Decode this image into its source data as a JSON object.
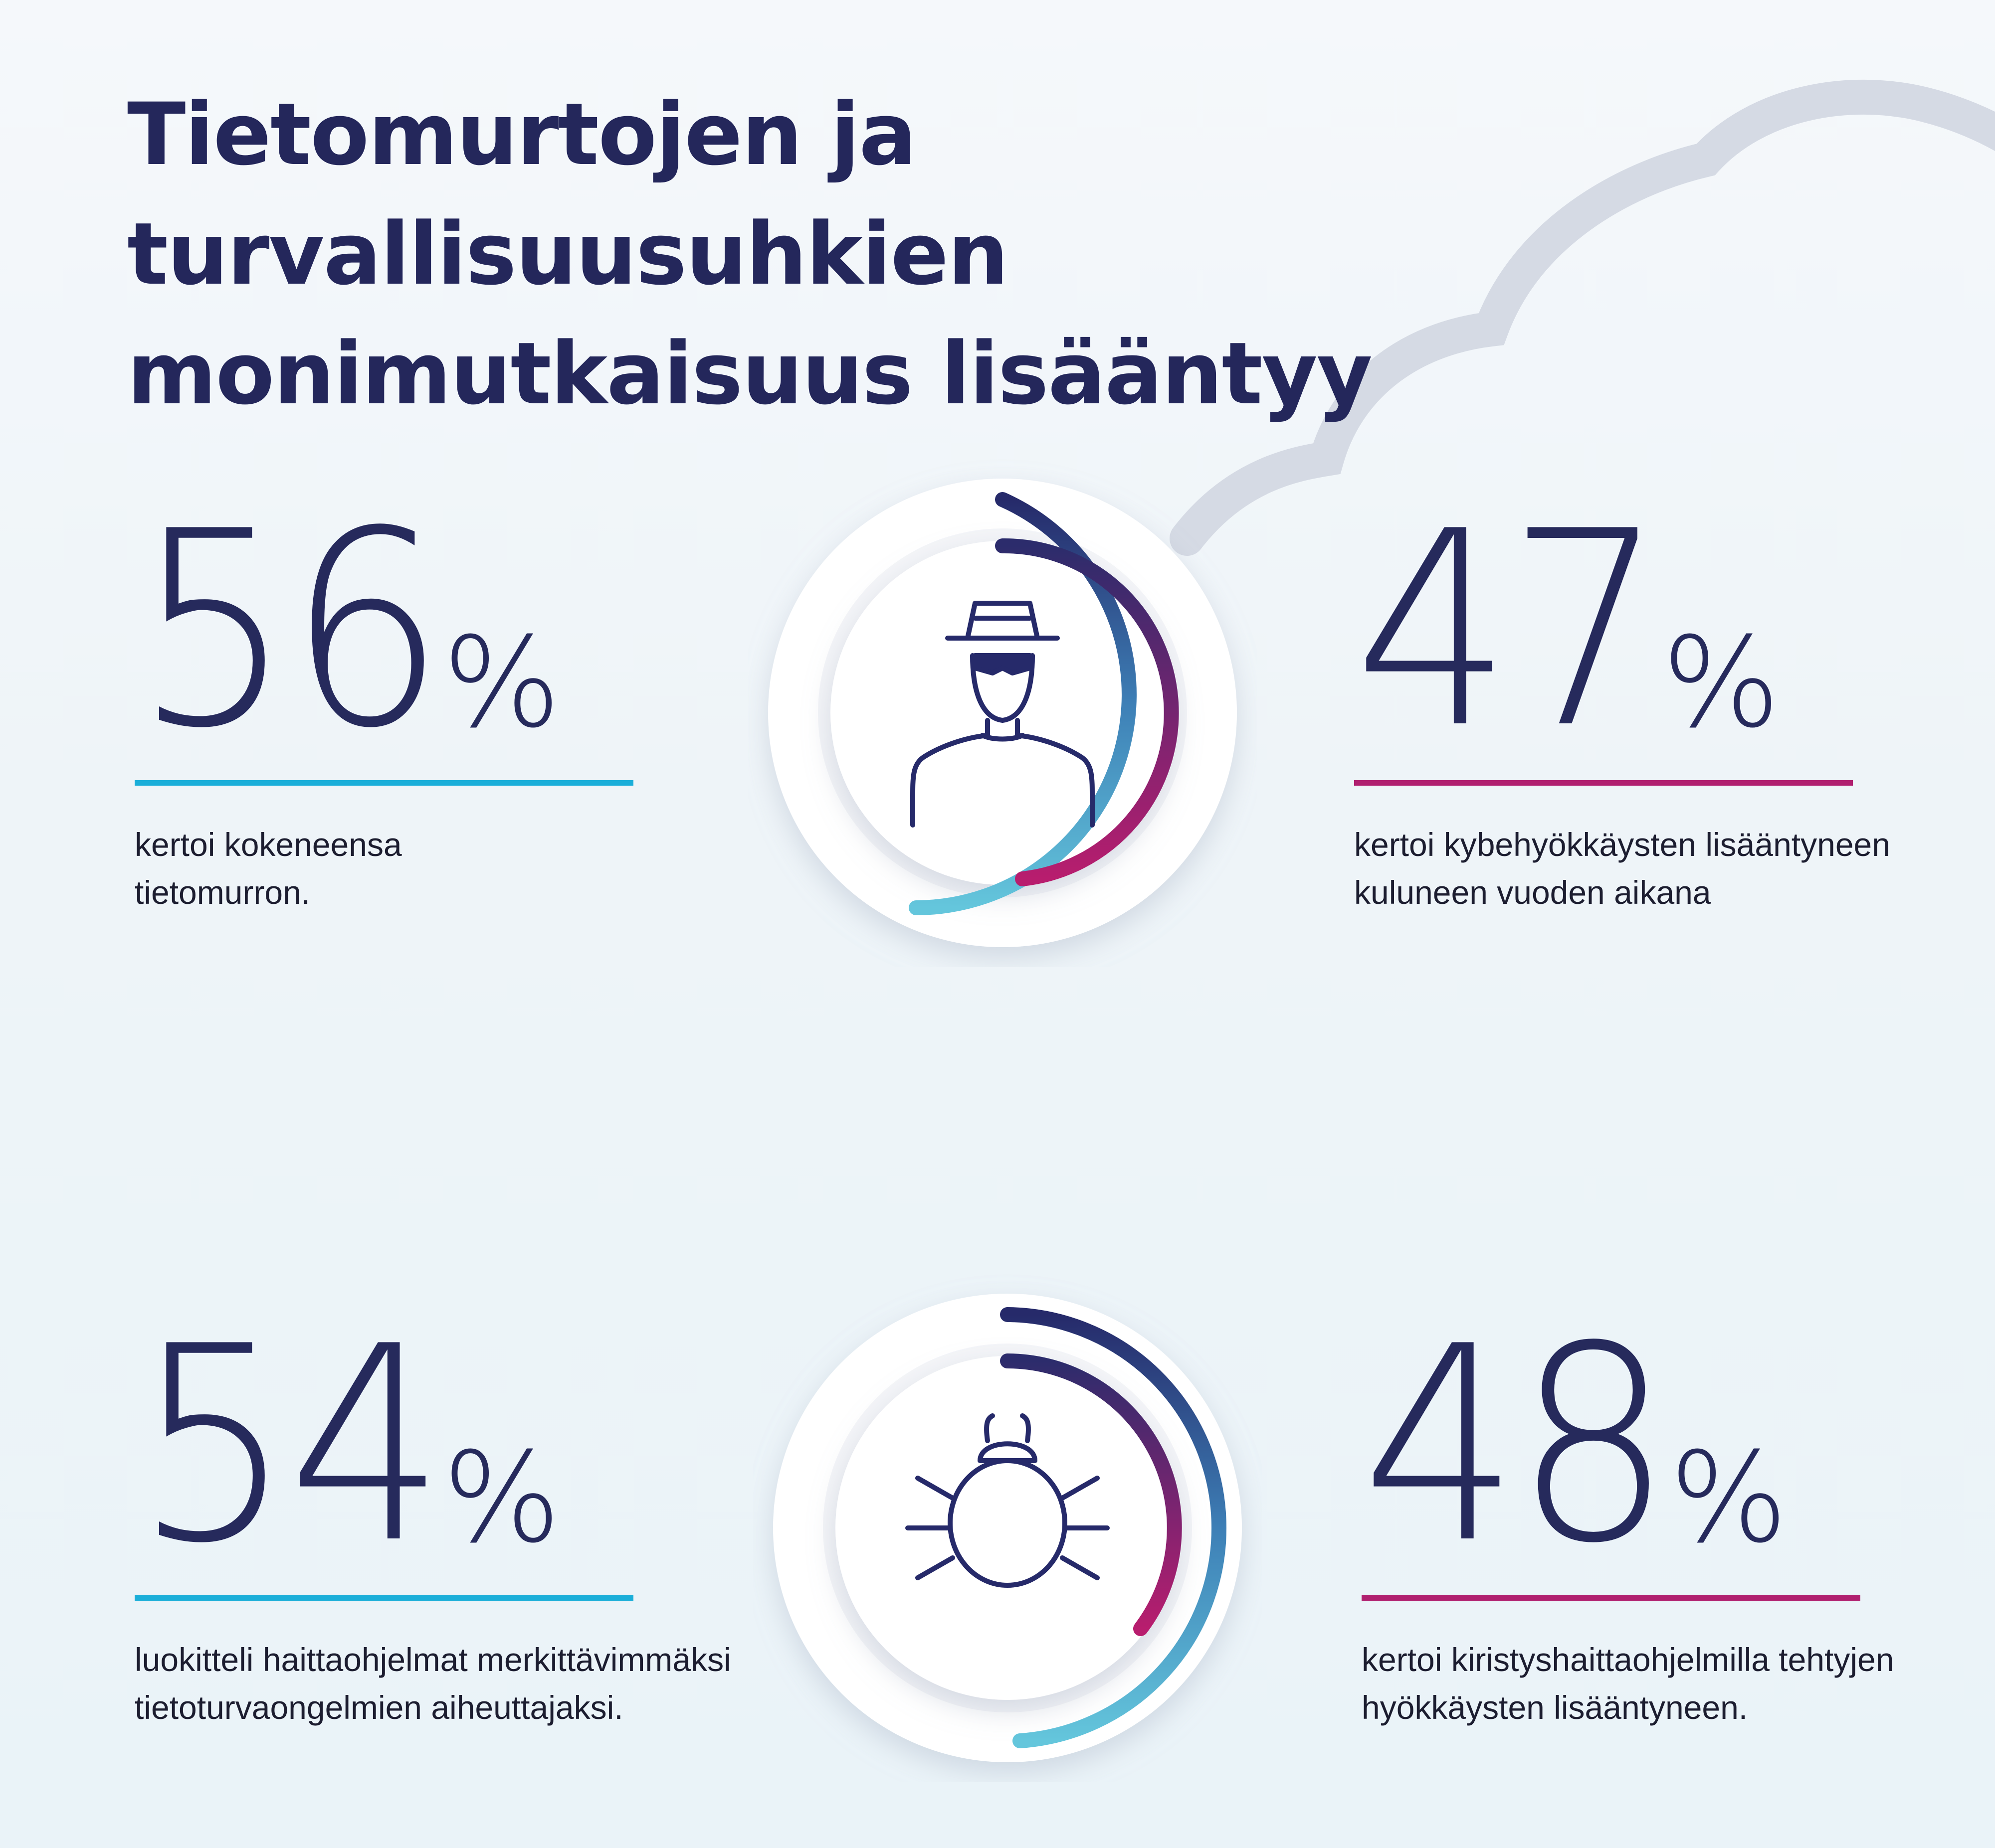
{
  "title": {
    "line1": "Tietomurtojen ja turvallisuusuhkien",
    "line2": "monimutkaisuus lisääntyy"
  },
  "colors": {
    "navy": "#262a5c",
    "cyan": "#1aaed9",
    "magenta": "#b01f6f",
    "cloud": "#d5dae4"
  },
  "stats": [
    {
      "value": "56",
      "unit": "%",
      "desc_line1": "kertoi kokeneensa",
      "desc_line2": "tietomurron.",
      "accent": "cyan"
    },
    {
      "value": "47",
      "unit": "%",
      "desc_line1": "kertoi kybehyökkäysten lisääntyneen",
      "desc_line2": "kuluneen vuoden aikana",
      "accent": "magenta"
    },
    {
      "value": "54",
      "unit": "%",
      "desc_line1": "luokitteli haittaohjelmat merkittävimmäksi",
      "desc_line2": "tietoturvaongelmien aiheuttajaksi.",
      "accent": "cyan"
    },
    {
      "value": "48",
      "unit": "%",
      "desc_line1": "kertoi kiristyshaittaohjelmilla tehtyjen",
      "desc_line2": "hyökkäysten lisääntyneen.",
      "accent": "magenta"
    }
  ],
  "icons": {
    "top": "hacker-icon",
    "bottom": "bug-icon"
  }
}
